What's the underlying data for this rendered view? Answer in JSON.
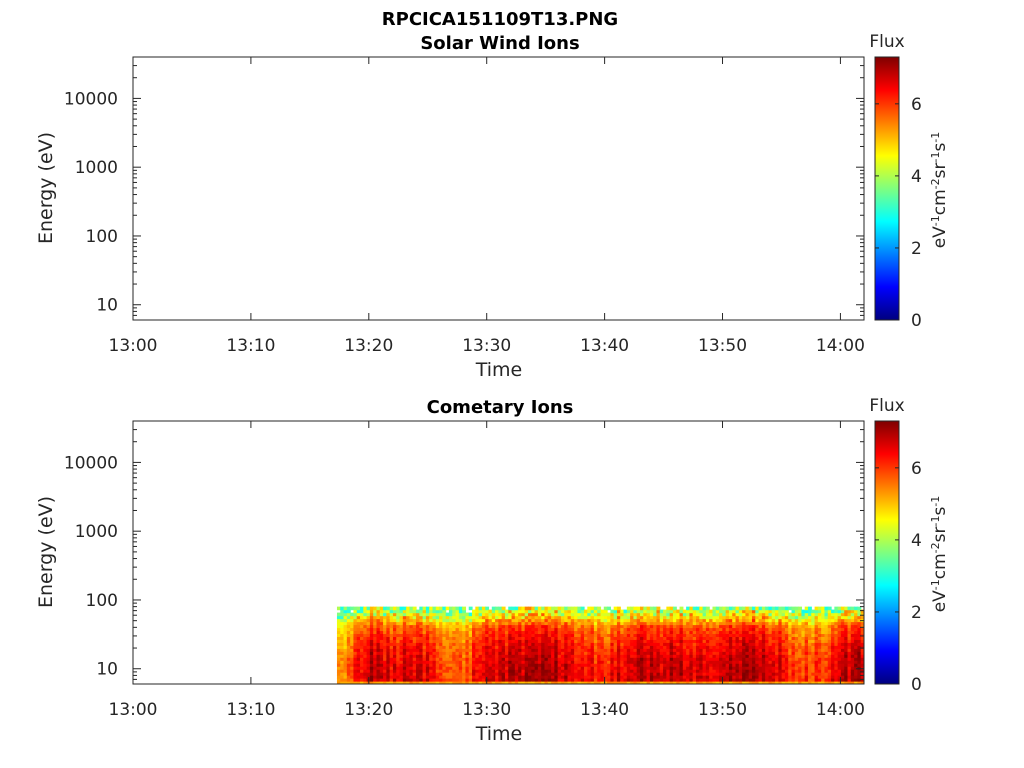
{
  "figure_title": "RPCICA151109T13.PNG",
  "colormap": [
    "#00007f",
    "#0000ff",
    "#007fff",
    "#00ffff",
    "#7fff7f",
    "#ffff00",
    "#ff7f00",
    "#ff0000",
    "#7f0000"
  ],
  "chart_data": [
    {
      "type": "heatmap",
      "title": "Solar Wind Ions",
      "xlabel": "Time",
      "ylabel": "Energy (eV)",
      "x_ticks": [
        "13:00",
        "13:10",
        "13:20",
        "13:30",
        "13:40",
        "13:50",
        "14:00"
      ],
      "x_range": [
        "13:00",
        "14:02"
      ],
      "y_scale": "log",
      "y_ticks": [
        "10",
        "100",
        "1000",
        "10000"
      ],
      "y_range": [
        6,
        40000
      ],
      "colorbar": {
        "label": "Flux",
        "units": "eV-1cm-2sr-1s-1",
        "ticks": [
          "0",
          "2",
          "4",
          "6"
        ],
        "range": [
          0,
          7.3
        ]
      },
      "data": "empty"
    },
    {
      "type": "heatmap",
      "title": "Cometary Ions",
      "xlabel": "Time",
      "ylabel": "Energy (eV)",
      "x_ticks": [
        "13:00",
        "13:10",
        "13:20",
        "13:30",
        "13:40",
        "13:50",
        "14:00"
      ],
      "x_range": [
        "13:00",
        "14:02"
      ],
      "y_scale": "log",
      "y_ticks": [
        "10",
        "100",
        "1000",
        "10000"
      ],
      "y_range": [
        6,
        40000
      ],
      "colorbar": {
        "label": "Flux",
        "units": "eV-1cm-2sr-1s-1",
        "ticks": [
          "0",
          "2",
          "4",
          "6"
        ],
        "range": [
          0,
          7.3
        ]
      },
      "data_time_range": [
        "13:17",
        "14:02"
      ],
      "data_energy_range": [
        6,
        80
      ],
      "flux_samples": [
        {
          "time": "13:18",
          "flux": 5.5
        },
        {
          "time": "13:20",
          "flux": 7.0
        },
        {
          "time": "13:22",
          "flux": 6.6
        },
        {
          "time": "13:24",
          "flux": 6.8
        },
        {
          "time": "13:26",
          "flux": 6.2
        },
        {
          "time": "13:28",
          "flux": 5.9
        },
        {
          "time": "13:30",
          "flux": 6.6
        },
        {
          "time": "13:32",
          "flux": 6.9
        },
        {
          "time": "13:34",
          "flux": 7.1
        },
        {
          "time": "13:36",
          "flux": 6.9
        },
        {
          "time": "13:38",
          "flux": 6.5
        },
        {
          "time": "13:40",
          "flux": 6.3
        },
        {
          "time": "13:42",
          "flux": 6.8
        },
        {
          "time": "13:44",
          "flux": 7.0
        },
        {
          "time": "13:46",
          "flux": 6.8
        },
        {
          "time": "13:48",
          "flux": 6.6
        },
        {
          "time": "13:50",
          "flux": 7.1
        },
        {
          "time": "13:52",
          "flux": 7.0
        },
        {
          "time": "13:54",
          "flux": 6.7
        },
        {
          "time": "13:56",
          "flux": 6.1
        },
        {
          "time": "13:58",
          "flux": 6.0
        },
        {
          "time": "14:00",
          "flux": 6.8
        },
        {
          "time": "14:02",
          "flux": 6.9
        }
      ]
    }
  ]
}
